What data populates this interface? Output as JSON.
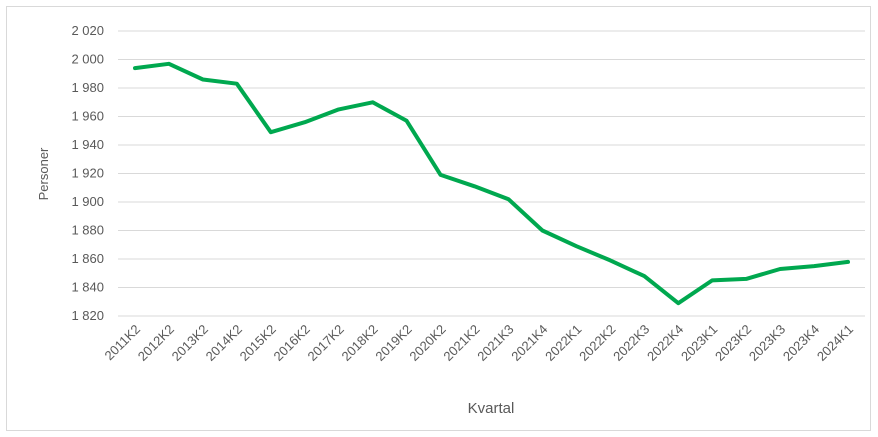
{
  "chart_data": {
    "type": "line",
    "x_label": "Kvartal",
    "y_label": "Personer",
    "categories": [
      "2011K2",
      "2012K2",
      "2013K2",
      "2014K2",
      "2015K2",
      "2016K2",
      "2017K2",
      "2018K2",
      "2019K2",
      "2020K2",
      "2021K2",
      "2021K3",
      "2021K4",
      "2022K1",
      "2022K2",
      "2022K3",
      "2022K4",
      "2023K1",
      "2023K2",
      "2023K3",
      "2023K4",
      "2024K1"
    ],
    "series": [
      {
        "color": "#00a84f",
        "values": [
          1994,
          1997,
          1986,
          1983,
          1949,
          1956,
          1965,
          1970,
          1957,
          1919,
          1911,
          1902,
          1880,
          1869,
          1859,
          1848,
          1829,
          1845,
          1846,
          1853,
          1855,
          1858
        ]
      }
    ],
    "ylim": [
      1820,
      2020
    ],
    "yticks": [
      {
        "value": 1820,
        "label": "1 820"
      },
      {
        "value": 1840,
        "label": "1 840"
      },
      {
        "value": 1860,
        "label": "1 860"
      },
      {
        "value": 1880,
        "label": "1 880"
      },
      {
        "value": 1900,
        "label": "1 900"
      },
      {
        "value": 1920,
        "label": "1 920"
      },
      {
        "value": 1940,
        "label": "1 940"
      },
      {
        "value": 1960,
        "label": "1 960"
      },
      {
        "value": 1980,
        "label": "1 980"
      },
      {
        "value": 2000,
        "label": "2 000"
      },
      {
        "value": 2020,
        "label": "2 020"
      }
    ],
    "grid": true
  }
}
